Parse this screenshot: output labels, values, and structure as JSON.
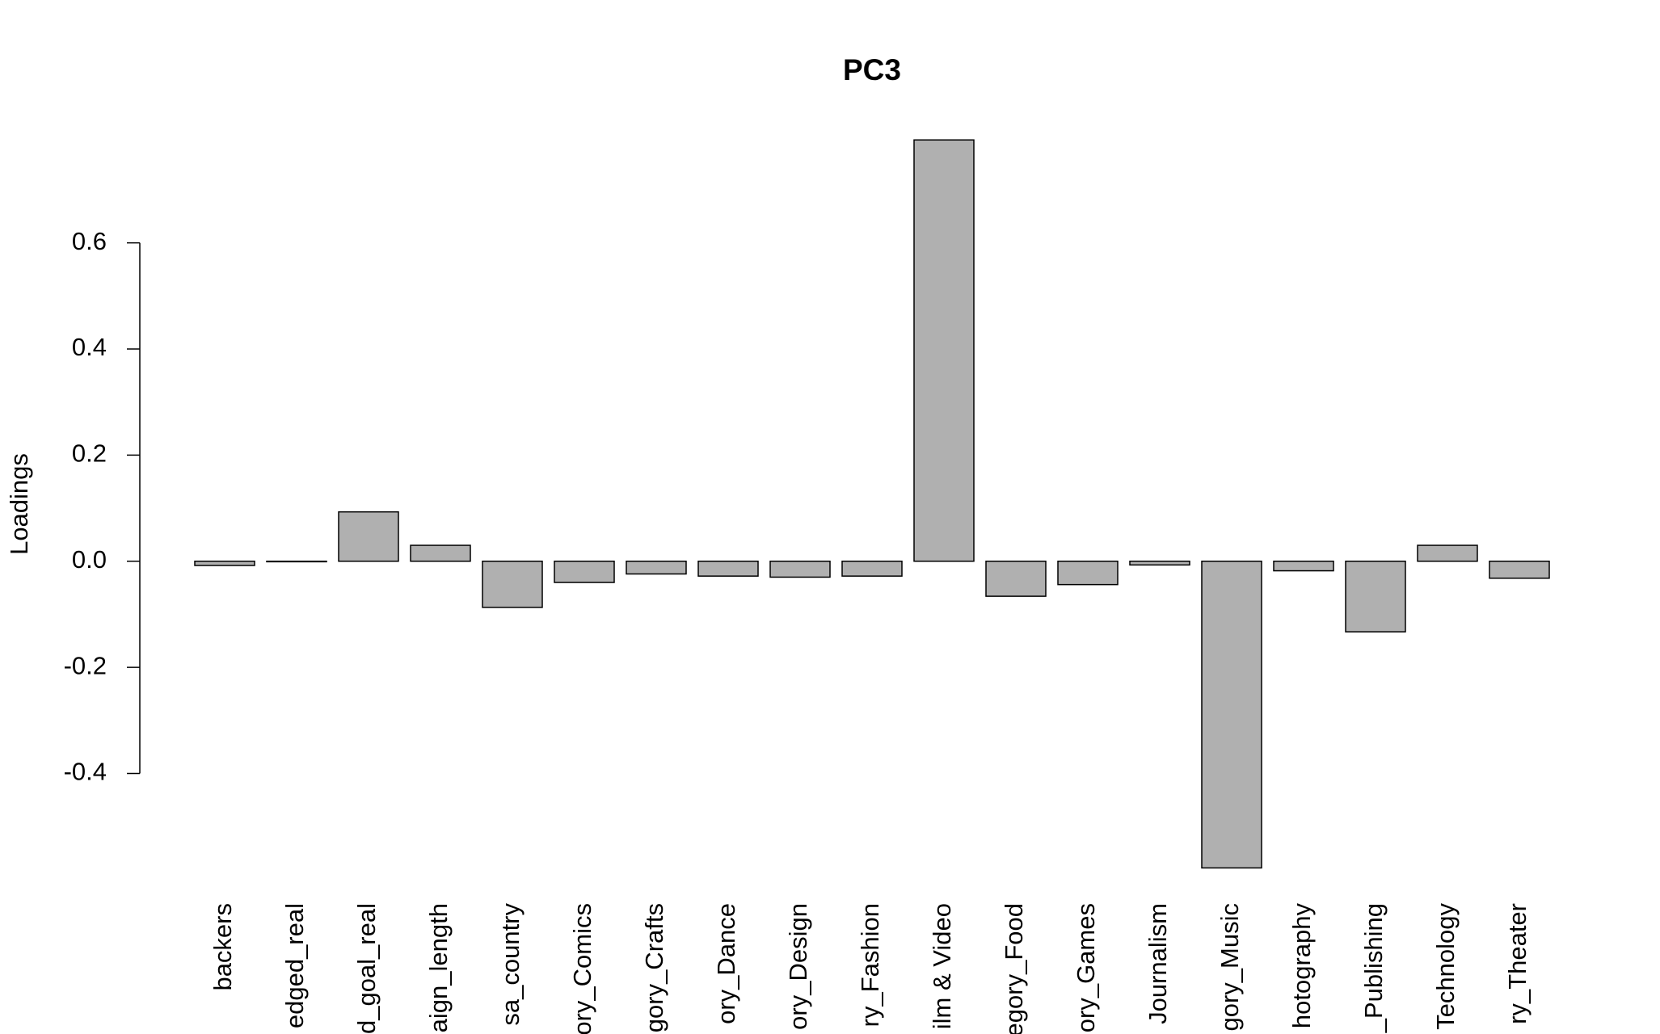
{
  "chart_data": {
    "type": "bar",
    "title": "PC3",
    "y_label": "Loadings",
    "categories": [
      "backers",
      "edged_real",
      "d_goal_real",
      "aign_length",
      "sa_country",
      "ory_Comics",
      "gory_Crafts",
      "ory_Dance",
      "ory_Design",
      "ry_Fashion",
      "ilm & Video",
      "egory_Food",
      "ory_Games",
      "Journalism",
      "gory_Music",
      "hotography",
      "_Publishing",
      "Technology",
      "ry_Theater"
    ],
    "values": [
      -0.008,
      -0.001,
      0.093,
      0.03,
      -0.087,
      -0.04,
      -0.024,
      -0.028,
      -0.03,
      -0.028,
      0.794,
      -0.066,
      -0.044,
      -0.007,
      -0.578,
      -0.018,
      -0.133,
      0.03,
      -0.032
    ],
    "color": "#b0b0b0",
    "ylim": [
      -0.62,
      0.84
    ],
    "yticks": [
      -0.4,
      -0.2,
      {
        "value": 0,
        "label": "0.0"
      },
      0.2,
      0.4,
      0.6
    ],
    "grid": false
  }
}
